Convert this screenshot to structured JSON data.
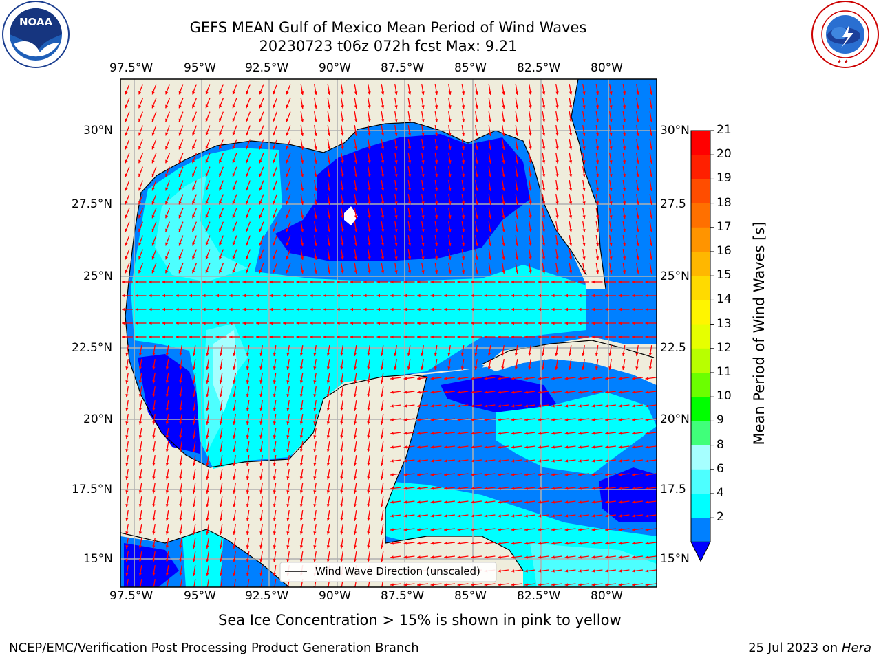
{
  "header": {
    "title_line1": "GEFS MEAN Gulf of Mexico Mean Period of Wind Waves",
    "title_line2": "20230723 t06z 072h fcst   Max: 9.21"
  },
  "logos": {
    "left": {
      "name": "noaa-logo",
      "text": "NOAA",
      "ring_text": "NATIONAL OCEANIC AND ATMOSPHERIC ADMINISTRATION · U.S. DEPARTMENT OF COMMERCE"
    },
    "right": {
      "name": "nws-logo",
      "ring_text": "NATIONAL WEATHER SERVICE"
    }
  },
  "axes": {
    "lon_labels": [
      "97.5°W",
      "95°W",
      "92.5°W",
      "90°W",
      "87.5°W",
      "85°W",
      "82.5°W",
      "80°W"
    ],
    "lat_labels_left": [
      "30°N",
      "27.5°N",
      "25°N",
      "22.5°N",
      "20°N",
      "17.5°N",
      "15°N"
    ],
    "lat_labels_right": [
      "30°N",
      "27.5",
      "25°N",
      "22.5",
      "20°N",
      "17.5",
      "15°N"
    ]
  },
  "legend": {
    "label": "Wind Wave Direction (unscaled)"
  },
  "colorbar": {
    "label": "Mean Period of Wind Waves [s]",
    "ticks": [
      "21",
      "20",
      "19",
      "18",
      "17",
      "16",
      "15",
      "14",
      "13",
      "12",
      "11",
      "10",
      "9",
      "8",
      "6",
      "4",
      "2"
    ],
    "colors": [
      "#ff0000",
      "#ff2000",
      "#ff4d00",
      "#ff7000",
      "#ff9400",
      "#ffb700",
      "#ffda00",
      "#fff500",
      "#e6ff00",
      "#b8ff00",
      "#6bff00",
      "#00ff00",
      "#40ff7a",
      "#a6ffff",
      "#4dffff",
      "#00ffff",
      "#0080ff"
    ],
    "extend_color": "#0000ff"
  },
  "map_colors": {
    "land": "#efeddc",
    "c2_4": "#0080ff",
    "c4_6": "#00ffff",
    "c6_8": "#4dffff",
    "c8_9": "#a6ffff",
    "below2": "#0000ff",
    "arrow": "#ff0000",
    "grid": "#b0b0b0"
  },
  "notes": {
    "sea_ice": "Sea Ice Concentration > 15% is shown in pink to yellow"
  },
  "footer": {
    "left": "NCEP/EMC/Verification Post Processing Product Generation Branch",
    "right_date": "25 Jul 2023 on ",
    "right_machine": "Hera"
  }
}
